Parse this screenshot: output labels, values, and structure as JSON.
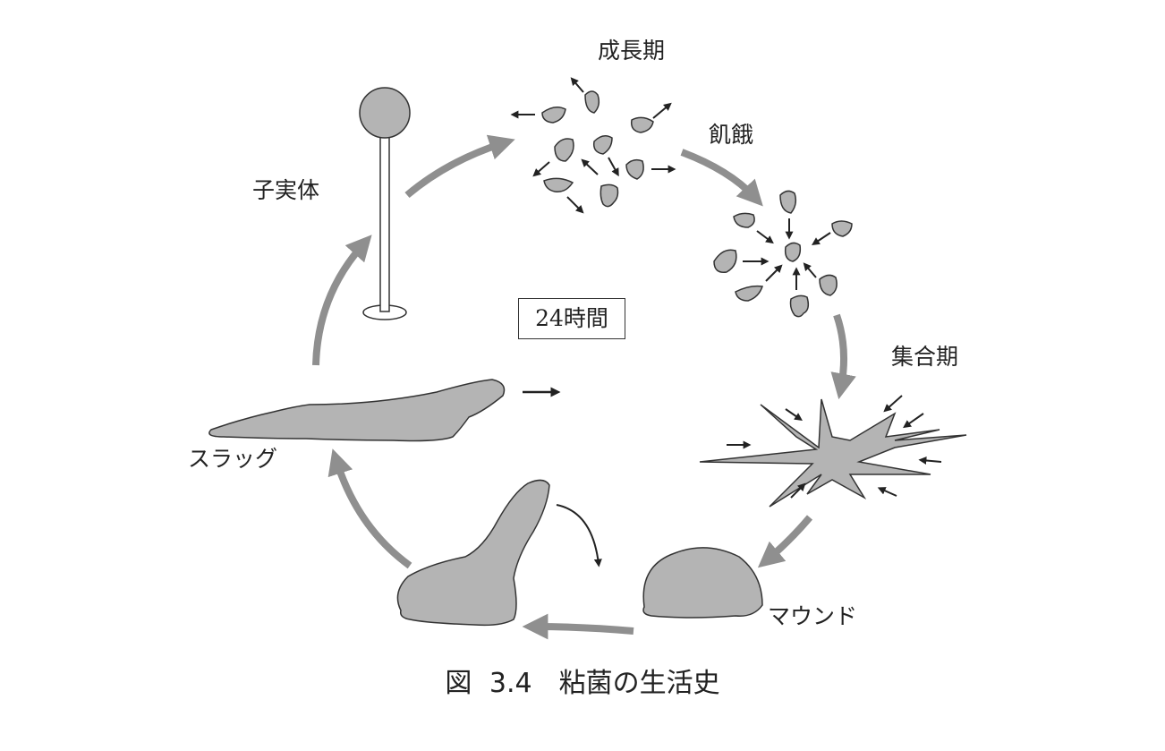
{
  "labels": {
    "growth": "成長期",
    "starvation": "飢餓",
    "aggregation": "集合期",
    "mound": "マウンド",
    "slug": "スラッグ",
    "fruiting_body": "子実体",
    "duration": "24時間"
  },
  "caption": "図 3.4　粘菌の生活史",
  "colors": {
    "cell_fill": "#b4b4b4",
    "outline": "#333333",
    "cycle_arrow": "#8f8f8f",
    "motion_arrow": "#222222"
  }
}
